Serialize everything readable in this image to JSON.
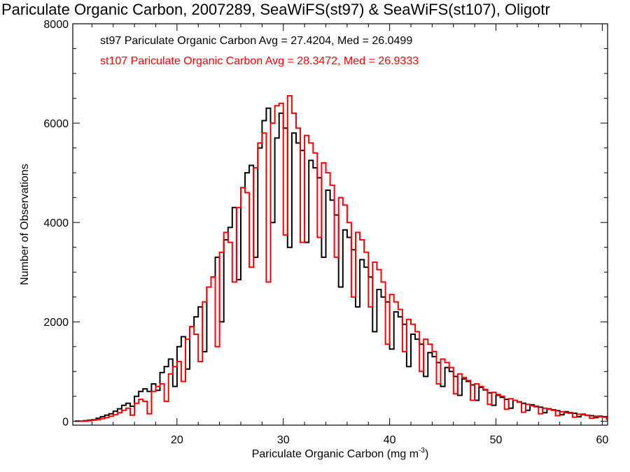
{
  "chart_data": {
    "type": "histogram-step",
    "title": "Pariculate Organic Carbon, 2007289, SeaWiFS(st97) & SeaWiFS(st107), Oligotr",
    "xlabel": "Pariculate Organic Carbon (mg m",
    "xlabel_unit_exp": "-3",
    "xlabel_close": ")",
    "ylabel": "Number of Observations",
    "xlim": [
      10.2,
      60.5
    ],
    "ylim": [
      -80,
      8000
    ],
    "xticks": [
      20,
      30,
      40,
      50,
      60
    ],
    "yticks": [
      0,
      2000,
      4000,
      6000,
      8000
    ],
    "legend_placement": "top-left",
    "bin_width": 0.4,
    "x_start": 10.4,
    "series": [
      {
        "name": "st97",
        "label": "st97 Pariculate Organic Carbon Avg = 27.4204, Med = 26.0499",
        "color": "#000000",
        "values": [
          0,
          0,
          10,
          20,
          30,
          60,
          90,
          120,
          150,
          200,
          250,
          320,
          360,
          300,
          500,
          600,
          650,
          600,
          750,
          620,
          980,
          1100,
          1250,
          700,
          1500,
          1700,
          1050,
          1900,
          2100,
          2300,
          1400,
          2700,
          2900,
          3300,
          2000,
          3650,
          3900,
          4300,
          2850,
          4700,
          5000,
          5150,
          3300,
          5500,
          6050,
          6300,
          4000,
          5700,
          6200,
          5900,
          3500,
          5800,
          5600,
          5450,
          3600,
          5250,
          5100,
          4900,
          3300,
          4650,
          4450,
          4150,
          2700,
          3850,
          3700,
          3450,
          2300,
          3250,
          3100,
          2900,
          1800,
          2650,
          2500,
          2400,
          1450,
          2200,
          2100,
          1950,
          1100,
          1750,
          1650,
          1550,
          900,
          1380,
          1300,
          1180,
          700,
          1080,
          1000,
          900,
          520,
          850,
          800,
          730,
          420,
          680,
          630,
          570,
          320,
          520,
          480,
          440,
          260,
          420,
          390,
          360,
          220,
          330,
          300,
          280,
          170,
          250,
          230,
          210,
          130,
          190,
          170,
          160,
          90,
          140,
          120,
          110,
          70,
          100,
          90,
          80,
          50,
          70,
          60,
          55,
          35,
          50,
          40,
          35,
          25,
          30,
          25,
          20,
          15,
          20,
          15,
          10
        ]
      },
      {
        "name": "st107",
        "label": "st107 Pariculate Organic Carbon Avg = 28.3472, Med = 26.9333",
        "color": "#ff0000",
        "values": [
          0,
          0,
          0,
          10,
          20,
          30,
          50,
          70,
          100,
          130,
          170,
          220,
          260,
          120,
          360,
          440,
          400,
          150,
          600,
          700,
          750,
          400,
          950,
          1100,
          1200,
          800,
          1650,
          1900,
          1750,
          1200,
          2400,
          2700,
          2900,
          1500,
          3400,
          3800,
          3600,
          2800,
          4300,
          4700,
          4600,
          3100,
          5100,
          5600,
          5800,
          2800,
          6000,
          6350,
          6400,
          3750,
          6550,
          6200,
          5900,
          3600,
          5750,
          5600,
          5400,
          3700,
          5200,
          5000,
          4750,
          3300,
          4500,
          4350,
          4000,
          2500,
          3800,
          3650,
          3400,
          2300,
          3200,
          3050,
          2800,
          1550,
          2550,
          2400,
          2250,
          1400,
          2050,
          1950,
          1800,
          1000,
          1650,
          1550,
          1400,
          750,
          1250,
          1180,
          1080,
          550,
          950,
          880,
          820,
          420,
          750,
          700,
          640,
          340,
          580,
          540,
          500,
          240,
          450,
          420,
          380,
          180,
          340,
          310,
          290,
          150,
          260,
          240,
          220,
          110,
          190,
          170,
          160,
          80,
          140,
          130,
          115,
          60,
          100,
          90,
          80,
          40,
          70,
          60,
          55,
          30,
          50,
          45,
          35,
          20,
          35,
          30,
          25,
          15,
          20,
          15,
          10
        ]
      }
    ]
  }
}
